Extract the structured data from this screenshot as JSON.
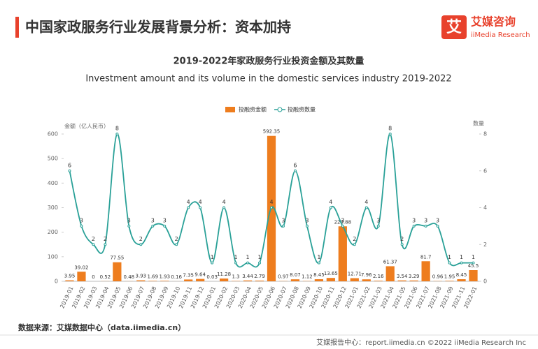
{
  "header": {
    "title": "中国家政服务行业发展背景分析：资本加持",
    "logo_cn": "艾媒咨询",
    "logo_en": "iiMedia Research",
    "logo_icon": "艾"
  },
  "chart_data": {
    "type": "bar-line",
    "title": "2019-2022年家政服务行业投资金额及其数量",
    "subtitle": "Investment amount and its volume in the domestic services industry 2019-2022",
    "y_label": "金额（亿人民币）",
    "y2_label": "数量",
    "categories": [
      "2019-01",
      "2019-02",
      "2019-03",
      "2019-04",
      "2019-05",
      "2019-06",
      "2019-07",
      "2019-08",
      "2019-09",
      "2019-10",
      "2019-11",
      "2019-12",
      "2020-01",
      "2020-02",
      "2020-03",
      "2020-04",
      "2020-05",
      "2020-06",
      "2020-07",
      "2020-08",
      "2020-09",
      "2020-10",
      "2020-11",
      "2020-12",
      "2021-01",
      "2021-02",
      "2021-03",
      "2021-04",
      "2021-05",
      "2021-06",
      "2021-07",
      "2021-08",
      "2021-09",
      "2021-11",
      "2022-01"
    ],
    "series": [
      {
        "name": "投融资金额",
        "type": "bar",
        "color": "#ee7d1e",
        "values": [
          3.95,
          39.02,
          0,
          0.52,
          77.55,
          0.48,
          3.93,
          1.69,
          1.93,
          0.16,
          7.35,
          9.64,
          0.03,
          11.28,
          1.3,
          3.44,
          2.79,
          592.35,
          0.97,
          8.07,
          1.12,
          8.45,
          13.65,
          223.88,
          12.71,
          7.96,
          2.16,
          61.37,
          3.54,
          3.29,
          81.7,
          0.96,
          1.95,
          8.45,
          45.5
        ]
      },
      {
        "name": "投融资数量",
        "type": "line",
        "axis": "y2",
        "color": "#2aa198",
        "values": [
          6,
          3,
          2,
          2,
          8,
          3,
          2,
          3,
          3,
          2,
          4,
          4,
          1,
          4,
          1,
          1,
          1,
          4,
          3,
          6,
          3,
          1,
          4,
          3,
          2,
          4,
          3,
          8,
          2,
          3,
          3,
          3,
          1,
          1,
          1
        ]
      }
    ],
    "ylim": [
      0,
      600
    ],
    "yticks": [
      0,
      100,
      200,
      300,
      400,
      500,
      600
    ],
    "y2lim": [
      0,
      8
    ],
    "y2ticks": [
      0,
      2,
      4,
      6,
      8
    ]
  },
  "source": "数据来源：艾媒数据中心（data.iimedia.cn）",
  "footer": "艾媒报告中心：report.iimedia.cn  ©2022  iiMedia Research  Inc"
}
